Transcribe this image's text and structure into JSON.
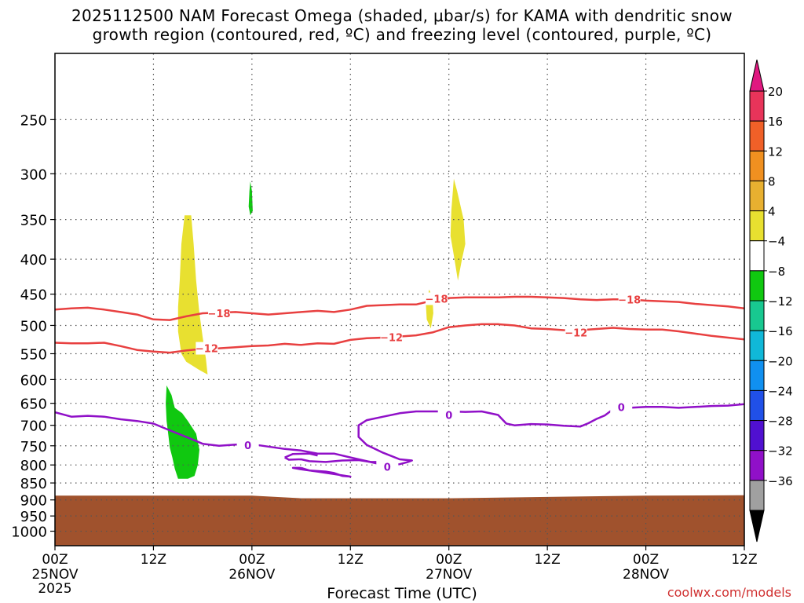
{
  "title": {
    "line1": "2025112500 NAM Forecast Omega (shaded, μbar/s) for KAMA with dendritic snow",
    "line2": "growth region (contoured, red, ºC) and freezing level (contoured, purple, ºC)"
  },
  "credit": "coolwx.com/models",
  "chart_data": {
    "type": "heatmap",
    "title": "2025112500 NAM Forecast Omega (shaded, μbar/s) for KAMA with dendritic snow growth region (contoured, red, ºC) and freezing level (contoured, purple, ºC)",
    "xlabel": "Forecast Time (UTC)",
    "ylabel": "",
    "x_unit": "forecast hour",
    "xlim": [
      0,
      84
    ],
    "y_unit": "pressure (mb)",
    "ylim": [
      1050,
      200
    ],
    "y_scale": "log",
    "grid": true,
    "y_ticks": [
      250,
      300,
      350,
      400,
      450,
      500,
      550,
      600,
      650,
      700,
      750,
      800,
      850,
      900,
      950,
      1000
    ],
    "x_ticks": [
      {
        "hour": 0,
        "label": "00Z",
        "sub": "25NOV",
        "sub2": "2025"
      },
      {
        "hour": 12,
        "label": "12Z"
      },
      {
        "hour": 24,
        "label": "00Z",
        "sub": "26NOV"
      },
      {
        "hour": 36,
        "label": "12Z"
      },
      {
        "hour": 48,
        "label": "00Z",
        "sub": "27NOV"
      },
      {
        "hour": 60,
        "label": "12Z"
      },
      {
        "hour": 72,
        "label": "00Z",
        "sub": "28NOV"
      },
      {
        "hour": 84,
        "label": "12Z"
      }
    ],
    "colorbar": {
      "labels": [
        "20",
        "16",
        "12",
        "8",
        "4",
        "−4",
        "−8",
        "−12",
        "−16",
        "−20",
        "−24",
        "−28",
        "−32",
        "−36"
      ],
      "colors": [
        "#e8345a",
        "#f06028",
        "#f09020",
        "#e8b030",
        "#e8e030",
        "#ffffff",
        "#10c810",
        "#18c890",
        "#10b8d8",
        "#1090f0",
        "#2050e8",
        "#5010d0",
        "#9010c8",
        "#a0a0a0"
      ],
      "top_color": "#e01880",
      "bottom_color": "#000000"
    },
    "terrain": {
      "color": "#a0522d",
      "surface_pressure": [
        [
          0,
          887
        ],
        [
          24,
          887
        ],
        [
          30,
          895
        ],
        [
          48,
          895
        ],
        [
          60,
          891
        ],
        [
          72,
          887
        ],
        [
          84,
          886
        ]
      ]
    },
    "contours": [
      {
        "name": "-18",
        "color": "#e84040",
        "labels": [
          {
            "hour": 20.0,
            "p": 480
          },
          {
            "hour": 46.5,
            "p": 457
          },
          {
            "hour": 70.0,
            "p": 458
          }
        ],
        "points": [
          [
            0,
            474
          ],
          [
            2,
            472
          ],
          [
            4,
            471
          ],
          [
            6,
            474
          ],
          [
            8,
            478
          ],
          [
            10,
            482
          ],
          [
            12,
            490
          ],
          [
            14,
            491
          ],
          [
            16,
            485
          ],
          [
            18,
            480
          ],
          [
            20,
            479
          ],
          [
            22,
            478
          ],
          [
            24,
            480
          ],
          [
            26,
            482
          ],
          [
            28,
            480
          ],
          [
            30,
            478
          ],
          [
            32,
            476
          ],
          [
            34,
            478
          ],
          [
            36,
            474
          ],
          [
            38,
            468
          ],
          [
            40,
            467
          ],
          [
            42,
            466
          ],
          [
            44,
            466
          ],
          [
            46,
            460
          ],
          [
            48,
            456
          ],
          [
            50,
            455
          ],
          [
            52,
            455
          ],
          [
            54,
            455
          ],
          [
            56,
            454
          ],
          [
            58,
            454
          ],
          [
            60,
            455
          ],
          [
            62,
            456
          ],
          [
            64,
            458
          ],
          [
            66,
            459
          ],
          [
            68,
            458
          ],
          [
            70,
            458
          ],
          [
            72,
            460
          ],
          [
            74,
            461
          ],
          [
            76,
            462
          ],
          [
            78,
            465
          ],
          [
            80,
            467
          ],
          [
            82,
            469
          ],
          [
            84,
            472
          ]
        ]
      },
      {
        "name": "-12",
        "color": "#e84040",
        "labels": [
          {
            "hour": 18.5,
            "p": 540
          },
          {
            "hour": 41.0,
            "p": 520
          },
          {
            "hour": 63.5,
            "p": 512
          }
        ],
        "points": [
          [
            0,
            530
          ],
          [
            2,
            531
          ],
          [
            4,
            531
          ],
          [
            6,
            530
          ],
          [
            8,
            536
          ],
          [
            10,
            543
          ],
          [
            12,
            546
          ],
          [
            14,
            548
          ],
          [
            16,
            544
          ],
          [
            18,
            541
          ],
          [
            20,
            540
          ],
          [
            22,
            538
          ],
          [
            24,
            536
          ],
          [
            26,
            535
          ],
          [
            28,
            532
          ],
          [
            30,
            534
          ],
          [
            32,
            531
          ],
          [
            34,
            532
          ],
          [
            36,
            525
          ],
          [
            38,
            522
          ],
          [
            40,
            521
          ],
          [
            42,
            519
          ],
          [
            44,
            517
          ],
          [
            46,
            512
          ],
          [
            48,
            503
          ],
          [
            50,
            500
          ],
          [
            52,
            498
          ],
          [
            54,
            498
          ],
          [
            56,
            500
          ],
          [
            58,
            505
          ],
          [
            60,
            506
          ],
          [
            62,
            508
          ],
          [
            64,
            508
          ],
          [
            66,
            506
          ],
          [
            68,
            504
          ],
          [
            70,
            506
          ],
          [
            72,
            507
          ],
          [
            74,
            507
          ],
          [
            76,
            510
          ],
          [
            78,
            514
          ],
          [
            80,
            518
          ],
          [
            82,
            521
          ],
          [
            84,
            524
          ]
        ]
      },
      {
        "name": "0",
        "color": "#9010c8",
        "labels": [
          {
            "hour": 23.5,
            "p": 748
          },
          {
            "hour": 40.5,
            "p": 805
          },
          {
            "hour": 48.0,
            "p": 676
          },
          {
            "hour": 69.0,
            "p": 658
          }
        ],
        "points": [
          [
            0,
            670
          ],
          [
            2,
            680
          ],
          [
            4,
            678
          ],
          [
            6,
            680
          ],
          [
            8,
            686
          ],
          [
            10,
            690
          ],
          [
            12,
            696
          ],
          [
            14,
            712
          ],
          [
            16,
            728
          ],
          [
            18,
            745
          ],
          [
            20,
            750
          ],
          [
            22,
            747
          ],
          [
            24,
            746
          ],
          [
            26,
            752
          ],
          [
            28,
            758
          ],
          [
            30,
            762
          ],
          [
            32,
            770
          ],
          [
            34,
            770
          ],
          [
            36,
            780
          ],
          [
            38,
            790
          ],
          [
            40,
            800
          ],
          [
            42,
            798
          ],
          [
            43,
            792
          ],
          [
            43.5,
            788
          ],
          [
            42,
            785
          ],
          [
            40,
            768
          ],
          [
            38,
            748
          ],
          [
            37,
            728
          ],
          [
            37,
            700
          ],
          [
            38,
            688
          ],
          [
            40,
            680
          ],
          [
            42,
            672
          ],
          [
            44,
            668
          ],
          [
            46,
            668
          ],
          [
            48,
            668
          ],
          [
            50,
            669
          ],
          [
            52,
            668
          ],
          [
            54,
            676
          ],
          [
            55,
            696
          ],
          [
            56,
            700
          ],
          [
            58,
            697
          ],
          [
            60,
            698
          ],
          [
            62,
            701
          ],
          [
            64,
            703
          ],
          [
            65,
            695
          ],
          [
            66,
            685
          ],
          [
            67,
            677
          ],
          [
            68,
            663
          ],
          [
            70,
            660
          ],
          [
            72,
            658
          ],
          [
            74,
            658
          ],
          [
            76,
            660
          ],
          [
            78,
            658
          ],
          [
            80,
            656
          ],
          [
            82,
            655
          ],
          [
            84,
            652
          ]
        ]
      }
    ],
    "contour_segments": [
      {
        "color": "#9010c8",
        "points": [
          [
            28,
            780
          ],
          [
            28.5,
            786
          ],
          [
            30,
            785
          ],
          [
            31,
            790
          ],
          [
            33,
            792
          ],
          [
            35,
            788
          ],
          [
            37,
            787
          ],
          [
            38.5,
            792
          ],
          [
            40,
            792
          ]
        ]
      },
      {
        "color": "#9010c8",
        "points": [
          [
            30,
            808
          ],
          [
            31,
            815
          ],
          [
            33,
            818
          ],
          [
            34,
            822
          ],
          [
            35,
            830
          ],
          [
            36,
            832
          ],
          [
            34,
            825
          ],
          [
            32,
            818
          ],
          [
            30,
            812
          ],
          [
            29,
            808
          ],
          [
            30,
            808
          ]
        ]
      },
      {
        "color": "#9010c8",
        "points": [
          [
            32,
            775
          ],
          [
            31,
            770
          ],
          [
            29,
            771
          ],
          [
            28,
            780
          ]
        ]
      }
    ],
    "omega_regions": [
      {
        "value": 6,
        "color": "#e8e030",
        "points": [
          [
            15.8,
            345
          ],
          [
            16.6,
            345
          ],
          [
            16.9,
            380
          ],
          [
            17.2,
            430
          ],
          [
            17.6,
            480
          ],
          [
            18.0,
            520
          ],
          [
            18.4,
            560
          ],
          [
            18.6,
            590
          ],
          [
            17.5,
            580
          ],
          [
            16.0,
            565
          ],
          [
            15.4,
            550
          ],
          [
            15.0,
            510
          ],
          [
            15.0,
            470
          ],
          [
            15.2,
            430
          ],
          [
            15.4,
            380
          ],
          [
            15.8,
            345
          ]
        ]
      },
      {
        "value": 6,
        "color": "#e8e030",
        "points": [
          [
            48.6,
            305
          ],
          [
            49.0,
            318
          ],
          [
            49.8,
            350
          ],
          [
            50.0,
            380
          ],
          [
            49.6,
            400
          ],
          [
            49.1,
            430
          ],
          [
            48.6,
            395
          ],
          [
            48.2,
            370
          ],
          [
            48.3,
            340
          ],
          [
            48.6,
            305
          ]
        ]
      },
      {
        "value": 6,
        "color": "#e8e030",
        "points": [
          [
            45.6,
            443
          ],
          [
            46.0,
            455
          ],
          [
            46.1,
            480
          ],
          [
            45.8,
            505
          ],
          [
            45.3,
            490
          ],
          [
            45.2,
            465
          ],
          [
            45.6,
            443
          ]
        ]
      },
      {
        "value": -6,
        "color": "#10c810",
        "points": [
          [
            23.8,
            308
          ],
          [
            24.0,
            318
          ],
          [
            24.1,
            340
          ],
          [
            23.8,
            345
          ],
          [
            23.6,
            335
          ],
          [
            23.7,
            318
          ],
          [
            23.8,
            308
          ]
        ]
      },
      {
        "value": -6,
        "color": "#10c810",
        "points": [
          [
            13.6,
            612
          ],
          [
            14.2,
            632
          ],
          [
            14.6,
            660
          ],
          [
            15.5,
            672
          ],
          [
            16.2,
            690
          ],
          [
            17.2,
            720
          ],
          [
            17.6,
            760
          ],
          [
            17.4,
            800
          ],
          [
            17.0,
            830
          ],
          [
            16.2,
            838
          ],
          [
            15.0,
            838
          ],
          [
            14.6,
            810
          ],
          [
            14.3,
            780
          ],
          [
            14.0,
            755
          ],
          [
            13.8,
            720
          ],
          [
            13.6,
            690
          ],
          [
            13.5,
            650
          ],
          [
            13.6,
            612
          ]
        ]
      }
    ]
  }
}
